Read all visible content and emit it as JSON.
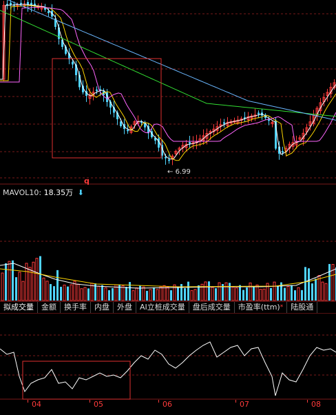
{
  "price_chart": {
    "low_marker": "6.99",
    "bottom_marker": "q"
  },
  "volume_indicator": {
    "name": "MAVOL10:",
    "value": "18.35万",
    "trend_icon": "down-arrow-icon"
  },
  "indicator_tabs": [
    {
      "label": "拟成交量"
    },
    {
      "label": "金额"
    },
    {
      "label": "换手率"
    },
    {
      "label": "内盘"
    },
    {
      "label": "外盘"
    },
    {
      "label": "AI立桩成交量"
    },
    {
      "label": "盘后成交量"
    },
    {
      "label": "市盈率(ttm)",
      "marker": "*"
    },
    {
      "label": "陆股通"
    }
  ],
  "x_axis": {
    "labels": [
      "04",
      "05",
      "06",
      "07",
      "08"
    ]
  },
  "colors": {
    "background": "#000000",
    "up": "#ff3b3b",
    "down": "#4fd3ff",
    "ma5": "#ffffff",
    "ma10": "#ffd700",
    "ma20": "#ff66ff",
    "ma30": "#33dd33",
    "ma60": "#6ab7ff",
    "highlight_box": "#e03030"
  }
}
